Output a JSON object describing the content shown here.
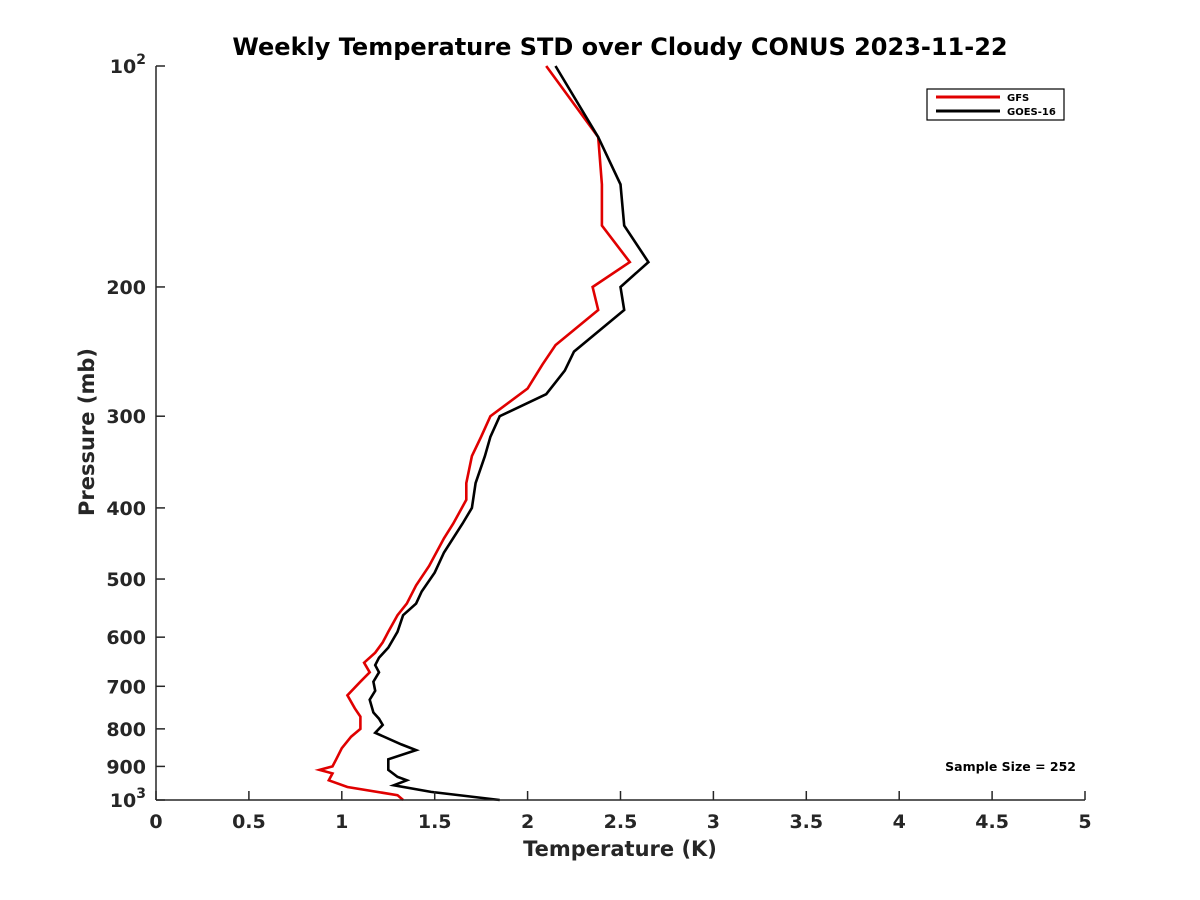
{
  "chart_data": {
    "type": "line",
    "title": "Weekly Temperature STD over Cloudy CONUS 2023-11-22",
    "xlabel": "Temperature (K)",
    "ylabel": "Pressure (mb)",
    "xlim": [
      0,
      5
    ],
    "ylim": [
      1000,
      100
    ],
    "yscale": "log",
    "y_reversed": true,
    "grid": false,
    "legend_position": "top-right",
    "x_ticks": [
      {
        "value": 0,
        "label": "0"
      },
      {
        "value": 0.5,
        "label": "0.5"
      },
      {
        "value": 1,
        "label": "1"
      },
      {
        "value": 1.5,
        "label": "1.5"
      },
      {
        "value": 2,
        "label": "2"
      },
      {
        "value": 2.5,
        "label": "2.5"
      },
      {
        "value": 3,
        "label": "3"
      },
      {
        "value": 3.5,
        "label": "3.5"
      },
      {
        "value": 4,
        "label": "4"
      },
      {
        "value": 4.5,
        "label": "4.5"
      },
      {
        "value": 5,
        "label": "5"
      }
    ],
    "y_ticks": [
      {
        "value": 100,
        "base": "10",
        "exp": "2"
      },
      {
        "value": 200,
        "label": "200"
      },
      {
        "value": 300,
        "label": "300"
      },
      {
        "value": 400,
        "label": "400"
      },
      {
        "value": 500,
        "label": "500"
      },
      {
        "value": 600,
        "label": "600"
      },
      {
        "value": 700,
        "label": "700"
      },
      {
        "value": 800,
        "label": "800"
      },
      {
        "value": 900,
        "label": "900"
      },
      {
        "value": 1000,
        "base": "10",
        "exp": "3"
      }
    ],
    "series": [
      {
        "name": "GFS",
        "color": "#e00000",
        "points": [
          [
            2.1,
            100
          ],
          [
            2.38,
            125
          ],
          [
            2.4,
            145
          ],
          [
            2.4,
            165
          ],
          [
            2.55,
            185
          ],
          [
            2.35,
            200
          ],
          [
            2.38,
            215
          ],
          [
            2.15,
            240
          ],
          [
            2.08,
            255
          ],
          [
            2.0,
            275
          ],
          [
            1.8,
            300
          ],
          [
            1.75,
            320
          ],
          [
            1.7,
            340
          ],
          [
            1.67,
            370
          ],
          [
            1.67,
            390
          ],
          [
            1.6,
            420
          ],
          [
            1.55,
            440
          ],
          [
            1.47,
            480
          ],
          [
            1.4,
            510
          ],
          [
            1.35,
            540
          ],
          [
            1.3,
            560
          ],
          [
            1.25,
            590
          ],
          [
            1.22,
            610
          ],
          [
            1.18,
            630
          ],
          [
            1.12,
            650
          ],
          [
            1.15,
            670
          ],
          [
            1.1,
            690
          ],
          [
            1.03,
            720
          ],
          [
            1.07,
            750
          ],
          [
            1.1,
            770
          ],
          [
            1.1,
            800
          ],
          [
            1.05,
            820
          ],
          [
            1.0,
            850
          ],
          [
            0.97,
            880
          ],
          [
            0.95,
            900
          ],
          [
            0.88,
            910
          ],
          [
            0.95,
            920
          ],
          [
            0.93,
            940
          ],
          [
            1.03,
            960
          ],
          [
            1.3,
            985
          ],
          [
            1.33,
            1000
          ]
        ]
      },
      {
        "name": "GOES-16",
        "color": "#000000",
        "points": [
          [
            2.15,
            100
          ],
          [
            2.38,
            125
          ],
          [
            2.5,
            145
          ],
          [
            2.52,
            165
          ],
          [
            2.65,
            185
          ],
          [
            2.5,
            200
          ],
          [
            2.52,
            215
          ],
          [
            2.25,
            245
          ],
          [
            2.2,
            260
          ],
          [
            2.1,
            280
          ],
          [
            1.85,
            300
          ],
          [
            1.8,
            320
          ],
          [
            1.77,
            340
          ],
          [
            1.72,
            370
          ],
          [
            1.7,
            400
          ],
          [
            1.65,
            420
          ],
          [
            1.55,
            460
          ],
          [
            1.5,
            490
          ],
          [
            1.43,
            520
          ],
          [
            1.4,
            540
          ],
          [
            1.33,
            560
          ],
          [
            1.3,
            590
          ],
          [
            1.25,
            620
          ],
          [
            1.2,
            640
          ],
          [
            1.18,
            655
          ],
          [
            1.2,
            670
          ],
          [
            1.17,
            690
          ],
          [
            1.18,
            710
          ],
          [
            1.15,
            730
          ],
          [
            1.17,
            760
          ],
          [
            1.2,
            775
          ],
          [
            1.22,
            790
          ],
          [
            1.18,
            810
          ],
          [
            1.32,
            840
          ],
          [
            1.4,
            855
          ],
          [
            1.25,
            880
          ],
          [
            1.25,
            910
          ],
          [
            1.3,
            930
          ],
          [
            1.35,
            940
          ],
          [
            1.28,
            955
          ],
          [
            1.48,
            975
          ],
          [
            1.85,
            1000
          ]
        ]
      }
    ],
    "annotations": [
      {
        "text": "Sample Size = 252",
        "position": "bottom-right"
      }
    ]
  }
}
